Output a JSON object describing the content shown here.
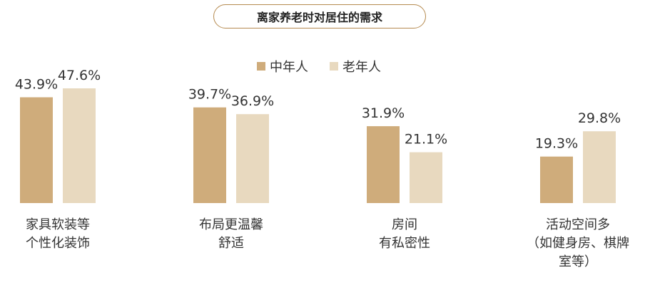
{
  "chart_data": {
    "type": "bar",
    "title": "离家养老时对居住的需求",
    "categories": [
      "家具软装等\n个性化装饰",
      "布局更温馨\n舒适",
      "房间\n有私密性",
      "活动空间多\n（如健身房、棋牌\n室等）"
    ],
    "series": [
      {
        "name": "中年人",
        "values": [
          43.9,
          39.7,
          31.9,
          19.3
        ]
      },
      {
        "name": "老年人",
        "values": [
          47.6,
          36.9,
          21.1,
          29.8
        ]
      }
    ],
    "value_suffix": "%",
    "legend_position": "top-center",
    "ylim": [
      0,
      47.6
    ],
    "grid": false
  },
  "colors": {
    "series": [
      "#cfac7b",
      "#e8d9bf"
    ],
    "title_border": "#b58a4f"
  }
}
